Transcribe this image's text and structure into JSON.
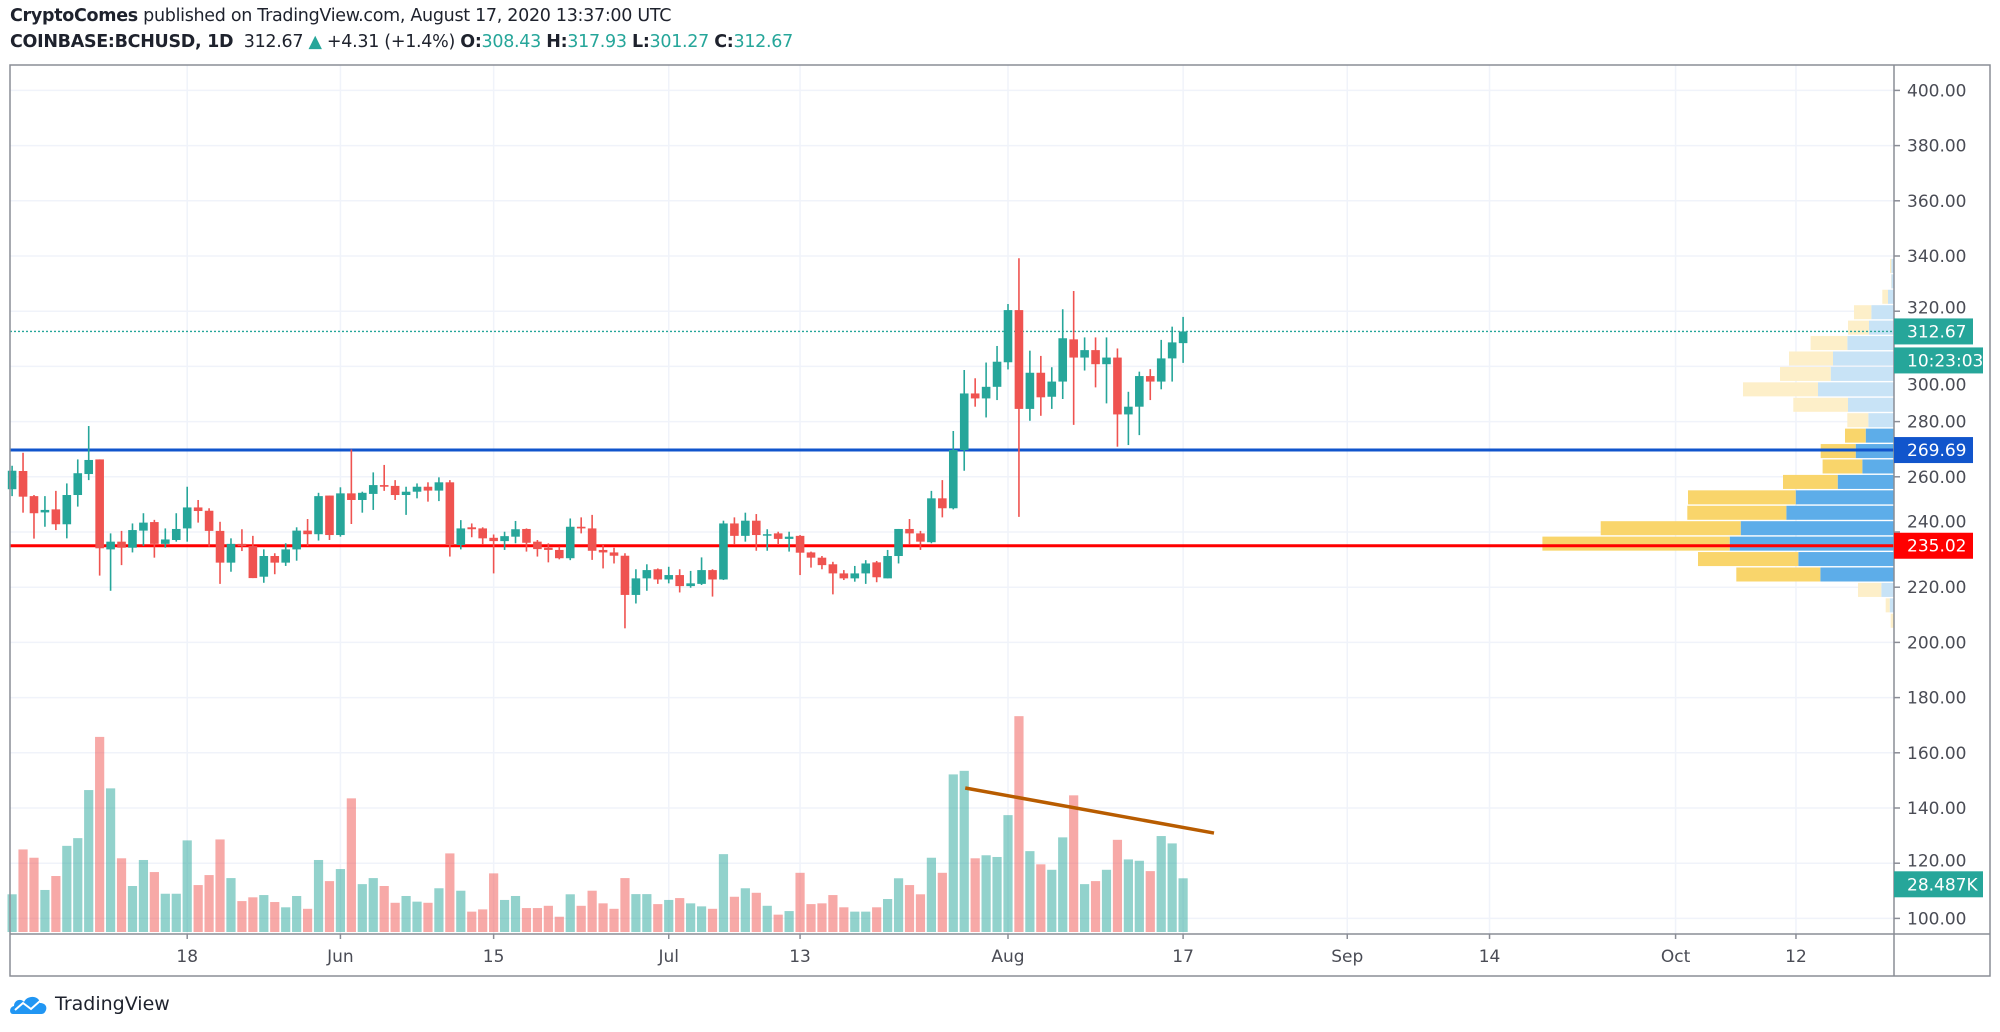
{
  "header": {
    "author": "CryptoComes",
    "published_text": "published on TradingView.com, August 17, 2020 13:37:00 UTC",
    "symbol": "COINBASE:BCHUSD, 1D",
    "last": "312.67",
    "change_arrow": "▲",
    "change": "+4.31 (+1.4%)",
    "open_label": "O:",
    "open": "308.43",
    "high_label": "H:",
    "high": "317.93",
    "low_label": "L:",
    "low": "301.27",
    "close_label": "C:",
    "close": "312.67"
  },
  "colors": {
    "up": "#26a69a",
    "down": "#ef5350",
    "support_blue": "#1155cc",
    "support_red": "#ff0000",
    "trendline": "#b85c00",
    "vp_up": "#5dade9",
    "vp_down": "#f9d56b",
    "vp_up_faded": "#c8e3f6",
    "vp_down_faded": "#fdefc9"
  },
  "footer": {
    "brand": "TradingView",
    "logo_icon": "tradingview-cloud-icon"
  },
  "chart_data": {
    "type": "candlestick",
    "title": "",
    "ylim": [
      95,
      410
    ],
    "y_ticks": [
      "100.00",
      "120.00",
      "140.00",
      "160.00",
      "180.00",
      "200.00",
      "220.00",
      "240.00",
      "260.00",
      "280.00",
      "300.00",
      "320.00",
      "340.00",
      "360.00",
      "380.00",
      "400.00"
    ],
    "x_range": [
      "2020-05-01",
      "2020-10-21"
    ],
    "x_ticks": [
      {
        "date": "2020-05-18",
        "label": "18"
      },
      {
        "date": "2020-06-01",
        "label": "Jun"
      },
      {
        "date": "2020-06-15",
        "label": "15"
      },
      {
        "date": "2020-07-01",
        "label": "Jul"
      },
      {
        "date": "2020-07-13",
        "label": "13"
      },
      {
        "date": "2020-08-01",
        "label": "Aug"
      },
      {
        "date": "2020-08-17",
        "label": "17"
      },
      {
        "date": "2020-09-01",
        "label": "Sep"
      },
      {
        "date": "2020-09-14",
        "label": "14"
      },
      {
        "date": "2020-10-01",
        "label": "Oct"
      },
      {
        "date": "2020-10-12",
        "label": "12"
      }
    ],
    "grid": true,
    "candle_fields": [
      "date",
      "open",
      "high",
      "low",
      "close",
      "volume_k"
    ],
    "candles": [
      [
        "2020-05-02",
        255.5,
        264.0,
        253.0,
        262.2,
        20.0
      ],
      [
        "2020-05-03",
        262.1,
        268.7,
        247.0,
        252.8,
        43.8
      ],
      [
        "2020-05-04",
        253.0,
        253.4,
        237.6,
        246.8,
        39.4
      ],
      [
        "2020-05-05",
        247.1,
        253.0,
        241.9,
        248.0,
        22.3
      ],
      [
        "2020-05-06",
        248.2,
        254.9,
        240.7,
        242.8,
        29.7
      ],
      [
        "2020-05-07",
        242.8,
        257.6,
        237.7,
        253.4,
        45.7
      ],
      [
        "2020-05-08",
        253.4,
        266.3,
        249.2,
        261.3,
        49.8
      ],
      [
        "2020-05-09",
        261.0,
        278.4,
        258.8,
        266.1,
        75.3
      ],
      [
        "2020-05-10",
        266.3,
        266.3,
        224.2,
        234.1,
        103.5
      ],
      [
        "2020-05-11",
        233.7,
        239.5,
        218.7,
        236.5,
        76.2
      ],
      [
        "2020-05-12",
        236.5,
        240.4,
        228.0,
        234.3,
        39.1
      ],
      [
        "2020-05-13",
        234.3,
        243.1,
        232.6,
        240.7,
        24.4
      ],
      [
        "2020-05-14",
        240.5,
        246.8,
        235.0,
        243.4,
        38.2
      ],
      [
        "2020-05-15",
        243.6,
        244.4,
        230.7,
        235.7,
        31.8
      ],
      [
        "2020-05-16",
        235.7,
        241.3,
        234.3,
        237.3,
        20.3
      ],
      [
        "2020-05-17",
        237.1,
        246.8,
        236.5,
        241.1,
        20.3
      ],
      [
        "2020-05-18",
        241.3,
        256.4,
        236.5,
        248.9,
        48.6
      ],
      [
        "2020-05-19",
        248.9,
        251.6,
        243.4,
        247.6,
        24.9
      ],
      [
        "2020-05-20",
        247.7,
        248.6,
        234.7,
        240.4,
        30.2
      ],
      [
        "2020-05-21",
        240.4,
        243.7,
        221.2,
        228.9,
        49.1
      ],
      [
        "2020-05-22",
        228.9,
        237.7,
        225.6,
        235.7,
        28.6
      ],
      [
        "2020-05-23",
        235.7,
        241.0,
        233.1,
        234.9,
        16.4
      ],
      [
        "2020-05-24",
        234.9,
        238.6,
        223.3,
        223.3,
        18.4
      ],
      [
        "2020-05-25",
        223.8,
        233.7,
        221.6,
        231.3,
        19.6
      ],
      [
        "2020-05-26",
        231.3,
        232.3,
        224.7,
        228.9,
        15.9
      ],
      [
        "2020-05-27",
        228.9,
        235.9,
        227.7,
        233.7,
        13.1
      ],
      [
        "2020-05-28",
        233.7,
        241.7,
        229.6,
        240.5,
        19.1
      ],
      [
        "2020-05-29",
        240.5,
        244.7,
        235.0,
        239.2,
        12.3
      ],
      [
        "2020-05-30",
        239.2,
        254.2,
        236.9,
        253.0,
        38.2
      ],
      [
        "2020-05-31",
        253.2,
        253.2,
        237.1,
        238.9,
        27.0
      ],
      [
        "2020-06-01",
        238.9,
        256.2,
        238.3,
        254.0,
        33.4
      ],
      [
        "2020-06-02",
        254.0,
        269.9,
        242.9,
        251.6,
        70.9
      ],
      [
        "2020-06-03",
        251.6,
        254.6,
        247.0,
        254.2,
        25.4
      ],
      [
        "2020-06-04",
        253.8,
        261.6,
        248.0,
        257.0,
        28.6
      ],
      [
        "2020-06-05",
        257.0,
        264.3,
        254.9,
        256.4,
        24.4
      ],
      [
        "2020-06-06",
        256.7,
        258.8,
        251.6,
        253.4,
        15.5
      ],
      [
        "2020-06-07",
        253.4,
        256.4,
        246.2,
        254.6,
        19.1
      ],
      [
        "2020-06-08",
        254.6,
        257.6,
        252.2,
        256.4,
        16.1
      ],
      [
        "2020-06-09",
        256.4,
        258.0,
        251.0,
        255.0,
        15.5
      ],
      [
        "2020-06-10",
        255.0,
        259.8,
        251.2,
        258.0,
        23.2
      ],
      [
        "2020-06-11",
        258.0,
        258.8,
        231.1,
        235.3,
        41.7
      ],
      [
        "2020-06-12",
        235.3,
        244.3,
        233.7,
        241.3,
        21.9
      ],
      [
        "2020-06-13",
        241.7,
        243.1,
        238.1,
        241.0,
        10.8
      ],
      [
        "2020-06-14",
        241.3,
        241.7,
        235.6,
        237.7,
        12.0
      ],
      [
        "2020-06-15",
        237.9,
        239.1,
        225.0,
        236.7,
        31.1
      ],
      [
        "2020-06-16",
        236.7,
        240.1,
        233.5,
        238.5,
        17.0
      ],
      [
        "2020-06-17",
        238.3,
        244.0,
        235.9,
        241.0,
        19.1
      ],
      [
        "2020-06-18",
        241.1,
        241.3,
        232.9,
        236.1,
        12.7
      ],
      [
        "2020-06-19",
        236.5,
        237.1,
        231.1,
        233.8,
        12.7
      ],
      [
        "2020-06-20",
        234.3,
        235.9,
        229.0,
        233.5,
        13.9
      ],
      [
        "2020-06-21",
        233.5,
        234.7,
        230.1,
        230.5,
        8.1
      ],
      [
        "2020-06-22",
        230.5,
        244.9,
        229.8,
        241.9,
        20.0
      ],
      [
        "2020-06-23",
        241.9,
        245.3,
        239.5,
        241.3,
        13.9
      ],
      [
        "2020-06-24",
        241.3,
        246.2,
        229.9,
        233.2,
        21.9
      ],
      [
        "2020-06-25",
        233.5,
        235.3,
        226.8,
        232.6,
        15.2
      ],
      [
        "2020-06-26",
        232.6,
        234.3,
        228.6,
        231.4,
        12.3
      ],
      [
        "2020-06-27",
        231.4,
        232.3,
        205.1,
        217.2,
        28.6
      ],
      [
        "2020-06-28",
        217.2,
        226.5,
        214.1,
        223.2,
        20.1
      ],
      [
        "2020-06-29",
        223.2,
        228.3,
        218.7,
        226.2,
        20.1
      ],
      [
        "2020-06-30",
        226.5,
        226.8,
        221.2,
        222.8,
        14.8
      ],
      [
        "2020-07-01",
        222.8,
        227.4,
        221.4,
        224.4,
        17.0
      ],
      [
        "2020-07-02",
        224.4,
        226.5,
        218.1,
        220.4,
        18.0
      ],
      [
        "2020-07-03",
        220.4,
        225.9,
        219.8,
        221.4,
        15.2
      ],
      [
        "2020-07-04",
        221.2,
        230.8,
        220.8,
        226.2,
        13.6
      ],
      [
        "2020-07-05",
        226.2,
        226.5,
        216.6,
        222.8,
        12.3
      ],
      [
        "2020-07-06",
        222.8,
        244.1,
        222.6,
        243.1,
        41.3
      ],
      [
        "2020-07-07",
        243.1,
        245.3,
        235.6,
        238.6,
        18.7
      ],
      [
        "2020-07-08",
        238.6,
        247.0,
        236.5,
        244.1,
        23.2
      ],
      [
        "2020-07-09",
        244.1,
        246.5,
        233.2,
        238.9,
        20.8
      ],
      [
        "2020-07-10",
        238.7,
        241.0,
        233.2,
        239.2,
        13.9
      ],
      [
        "2020-07-11",
        239.5,
        240.1,
        235.3,
        237.5,
        9.2
      ],
      [
        "2020-07-12",
        237.5,
        240.1,
        232.9,
        238.3,
        11.1
      ],
      [
        "2020-07-13",
        238.6,
        238.9,
        224.4,
        232.5,
        31.4
      ],
      [
        "2020-07-14",
        232.6,
        232.9,
        227.1,
        230.7,
        14.8
      ],
      [
        "2020-07-15",
        230.7,
        231.3,
        226.5,
        228.0,
        15.2
      ],
      [
        "2020-07-16",
        228.3,
        229.2,
        217.4,
        225.0,
        19.6
      ],
      [
        "2020-07-17",
        225.0,
        226.2,
        222.6,
        223.2,
        13.1
      ],
      [
        "2020-07-18",
        223.2,
        227.7,
        222.0,
        225.0,
        10.8
      ],
      [
        "2020-07-19",
        225.0,
        229.8,
        221.2,
        228.6,
        10.8
      ],
      [
        "2020-07-20",
        229.0,
        229.5,
        221.8,
        223.6,
        13.1
      ],
      [
        "2020-07-21",
        223.2,
        233.5,
        223.2,
        231.3,
        17.5
      ],
      [
        "2020-07-22",
        231.3,
        241.1,
        228.6,
        241.1,
        28.5
      ],
      [
        "2020-07-23",
        241.1,
        244.7,
        235.6,
        239.5,
        24.9
      ],
      [
        "2020-07-24",
        239.5,
        240.4,
        233.5,
        236.5,
        20.0
      ],
      [
        "2020-07-25",
        236.3,
        254.9,
        235.9,
        252.2,
        39.4
      ],
      [
        "2020-07-26",
        252.2,
        258.8,
        245.3,
        248.6,
        31.4
      ],
      [
        "2020-07-27",
        248.6,
        276.6,
        248.2,
        269.7,
        83.6
      ],
      [
        "2020-07-28",
        269.7,
        298.7,
        262.2,
        290.2,
        85.5
      ],
      [
        "2020-07-29",
        290.2,
        295.7,
        285.4,
        288.4,
        39.1
      ],
      [
        "2020-07-30",
        288.4,
        301.4,
        281.5,
        292.6,
        40.7
      ],
      [
        "2020-07-31",
        292.6,
        307.4,
        287.8,
        301.7,
        39.8
      ],
      [
        "2020-08-01",
        301.5,
        322.6,
        298.9,
        320.4,
        62.0
      ],
      [
        "2020-08-02",
        320.4,
        339.2,
        245.5,
        284.6,
        114.5
      ],
      [
        "2020-08-03",
        284.6,
        305.7,
        280.3,
        297.7,
        42.9
      ],
      [
        "2020-08-04",
        297.7,
        303.8,
        282.1,
        288.8,
        35.9
      ],
      [
        "2020-08-05",
        289.0,
        299.7,
        284.6,
        294.5,
        33.0
      ],
      [
        "2020-08-06",
        294.5,
        320.7,
        288.2,
        310.2,
        50.2
      ],
      [
        "2020-08-07",
        309.8,
        327.3,
        278.8,
        303.2,
        72.5
      ],
      [
        "2020-08-08",
        303.2,
        310.5,
        298.5,
        305.9,
        25.4
      ],
      [
        "2020-08-09",
        305.9,
        310.5,
        292.4,
        300.8,
        27.0
      ],
      [
        "2020-08-10",
        300.8,
        310.5,
        286.6,
        303.2,
        33.0
      ],
      [
        "2020-08-11",
        303.2,
        306.5,
        270.9,
        282.6,
        48.9
      ],
      [
        "2020-08-12",
        282.6,
        290.8,
        271.5,
        285.4,
        38.5
      ],
      [
        "2020-08-13",
        285.4,
        298.1,
        275.1,
        296.5,
        37.8
      ],
      [
        "2020-08-14",
        296.5,
        299.0,
        287.8,
        294.5,
        32.3
      ],
      [
        "2020-08-15",
        294.5,
        309.6,
        291.7,
        302.9,
        50.9
      ],
      [
        "2020-08-16",
        302.9,
        314.4,
        294.5,
        308.7,
        47.0
      ],
      [
        "2020-08-17",
        308.43,
        317.93,
        301.27,
        312.67,
        28.487
      ]
    ],
    "horizontal_lines": [
      {
        "price": 269.69,
        "label": "269.69",
        "color": "#1155cc"
      },
      {
        "price": 235.02,
        "label": "235.02",
        "color": "#ff0000"
      }
    ],
    "last_price": {
      "price": 312.67,
      "label": "312.67",
      "countdown": "10:23:03",
      "color": "#26a69a"
    },
    "last_volume": {
      "value_k": 28.487,
      "label": "28.487K"
    },
    "volume_trendline": [
      {
        "date": "2020-07-28",
        "volume_k": 76.4
      },
      {
        "date": "2020-08-19",
        "volume_k": 52.5
      }
    ],
    "volume_profile": {
      "bin_size": 5.59,
      "top_price": 339.2,
      "rows_up_down": [
        [
          2.7,
          1.3
        ],
        [
          2.7,
          0.3
        ],
        [
          6,
          5.7
        ],
        [
          22.7,
          17.3
        ],
        [
          25,
          21
        ],
        [
          46.7,
          36.7
        ],
        [
          61,
          44
        ],
        [
          63.3,
          50.7
        ],
        [
          76,
          75
        ],
        [
          46,
          54.7
        ],
        [
          25.7,
          21
        ],
        [
          28.3,
          20.7
        ],
        [
          38.3,
          35
        ],
        [
          31.7,
          39.7
        ],
        [
          56.3,
          54.7
        ],
        [
          98.3,
          107.7
        ],
        [
          107.7,
          99
        ],
        [
          153.3,
          140
        ],
        [
          164.3,
          187.3
        ],
        [
          95.7,
          100.3
        ],
        [
          73.7,
          84
        ],
        [
          12.7,
          23.3
        ],
        [
          4.3,
          4
        ],
        [
          0.5,
          2.8
        ]
      ],
      "value_area_rows": [
        11,
        20
      ]
    }
  }
}
